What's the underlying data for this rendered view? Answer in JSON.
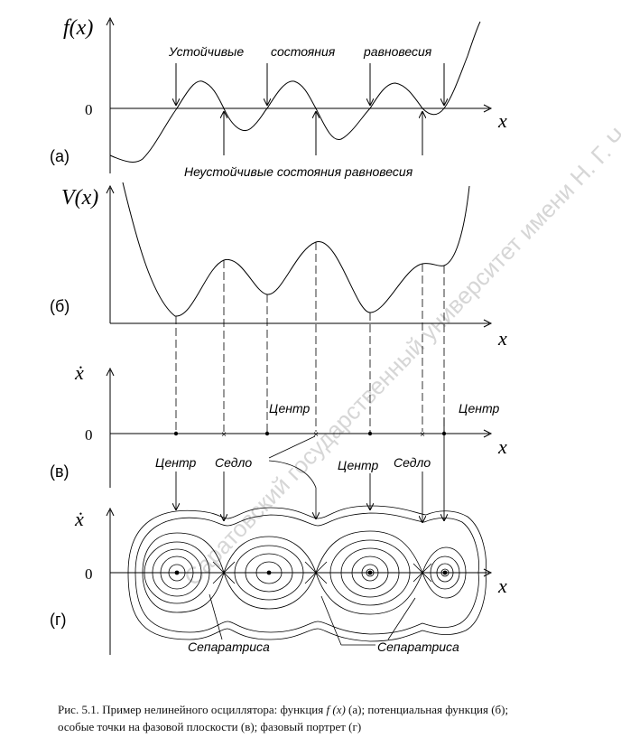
{
  "watermark": "Саратовский государственный университет имени Н. Г. Чернышевского",
  "panel_a": {
    "ylabel": "f(x)",
    "zero": "0",
    "xlabel": "x",
    "letter": "(а)",
    "stable_label": [
      "Устойчивые",
      "состояния",
      "равновесия"
    ],
    "unstable_label": "Неустойчивые состояния равновесия"
  },
  "panel_b": {
    "ylabel": "V(x)",
    "xlabel": "x",
    "letter": "(б)"
  },
  "panel_v": {
    "ylabel": "ẋ",
    "zero": "0",
    "xlabel": "x",
    "letter": "(в)",
    "center_label": "Центр",
    "saddle_label": "Седло"
  },
  "panel_g": {
    "ylabel": "ẋ",
    "zero": "0",
    "xlabel": "x",
    "letter": "(г)",
    "separatrix_label": "Сепаратриса"
  },
  "caption": {
    "prefix": "Рис. 5.1. Пример нелинейного осциллятора: функция",
    "fx": "f (x)",
    "suffix": "(а); потенциальная функция (б);",
    "line2": "особые точки на фазовой плоскости (в); фазовый портрет (г)"
  }
}
